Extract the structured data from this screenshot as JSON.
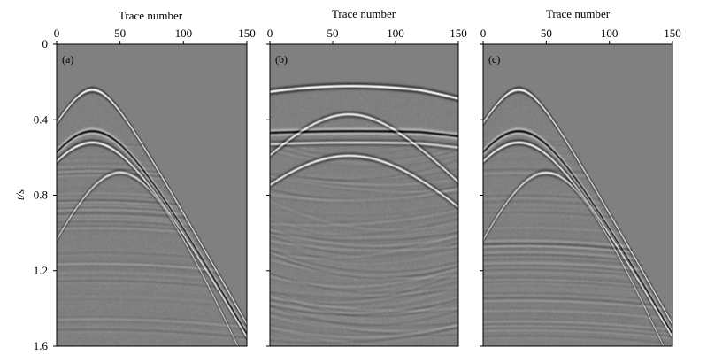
{
  "chart_data": [
    {
      "type": "heatmap",
      "panel_label": "(a)",
      "xlabel": "Trace number",
      "ylabel": "t/s",
      "xlim": [
        0,
        150
      ],
      "ylim": [
        1.6,
        0
      ],
      "x_ticks": [
        0,
        50,
        100,
        150
      ],
      "x_tick_labels": [
        "0",
        "50",
        "100",
        "150"
      ],
      "y_ticks": [
        0,
        0.4,
        0.8,
        1.2,
        1.6
      ],
      "y_tick_labels": [
        "0",
        "0.4",
        "0.8",
        "1.2",
        "1.6"
      ],
      "x_axis_position": "top",
      "colormap": "grayscale",
      "events": [
        {
          "kind": "hyperbola",
          "apex_trace": 28,
          "apex_time": 0.24,
          "velocity": 0.1,
          "polarity": 1,
          "strength": 1.0
        },
        {
          "kind": "hyperbola",
          "apex_trace": 28,
          "apex_time": 0.46,
          "velocity": 0.1,
          "polarity": -1,
          "strength": 0.85
        },
        {
          "kind": "hyperbola",
          "apex_trace": 28,
          "apex_time": 0.52,
          "velocity": 0.1,
          "polarity": 1,
          "strength": 0.9
        },
        {
          "kind": "hyperbola",
          "apex_trace": 50,
          "apex_time": 0.68,
          "velocity": 0.13,
          "polarity": 1,
          "strength": 0.7
        }
      ]
    },
    {
      "type": "heatmap",
      "panel_label": "(b)",
      "xlabel": "Trace number",
      "xlim": [
        0,
        150
      ],
      "ylim": [
        1.6,
        0
      ],
      "x_ticks": [
        0,
        50,
        100,
        150
      ],
      "x_tick_labels": [
        "0",
        "50",
        "100",
        "150"
      ],
      "y_ticks": [
        0,
        0.4,
        0.8,
        1.2,
        1.6
      ],
      "x_axis_position": "top",
      "colormap": "grayscale",
      "events": [
        {
          "kind": "flat",
          "apex_trace": 65,
          "apex_time": 0.22,
          "amplitude_bend": 0.04,
          "polarity": 1,
          "strength": 1.0
        },
        {
          "kind": "arch",
          "apex_trace": 63,
          "apex_time": 0.37,
          "velocity": 0.09,
          "polarity": 1,
          "strength": 0.8
        },
        {
          "kind": "flat",
          "apex_trace": 70,
          "apex_time": 0.46,
          "amplitude_bend": 0.01,
          "polarity": -1,
          "strength": 0.8
        },
        {
          "kind": "flat",
          "apex_trace": 70,
          "apex_time": 0.52,
          "amplitude_bend": 0.01,
          "polarity": 1,
          "strength": 0.6
        },
        {
          "kind": "arch",
          "apex_trace": 63,
          "apex_time": 0.59,
          "velocity": 0.09,
          "polarity": 1,
          "strength": 0.8
        }
      ]
    },
    {
      "type": "heatmap",
      "panel_label": "(c)",
      "xlabel": "Trace number",
      "xlim": [
        0,
        150
      ],
      "ylim": [
        1.6,
        0
      ],
      "x_ticks": [
        0,
        50,
        100,
        150
      ],
      "x_tick_labels": [
        "0",
        "50",
        "100",
        "150"
      ],
      "y_ticks": [
        0,
        0.4,
        0.8,
        1.2,
        1.6
      ],
      "x_axis_position": "top",
      "colormap": "grayscale",
      "events": [
        {
          "kind": "hyperbola",
          "apex_trace": 28,
          "apex_time": 0.24,
          "velocity": 0.1,
          "polarity": 1,
          "strength": 1.0
        },
        {
          "kind": "hyperbola",
          "apex_trace": 28,
          "apex_time": 0.46,
          "velocity": 0.1,
          "polarity": -1,
          "strength": 0.85
        },
        {
          "kind": "hyperbola",
          "apex_trace": 28,
          "apex_time": 0.52,
          "velocity": 0.1,
          "polarity": 1,
          "strength": 0.9
        },
        {
          "kind": "hyperbola",
          "apex_trace": 50,
          "apex_time": 0.68,
          "velocity": 0.13,
          "polarity": 1,
          "strength": 0.7
        }
      ]
    }
  ]
}
